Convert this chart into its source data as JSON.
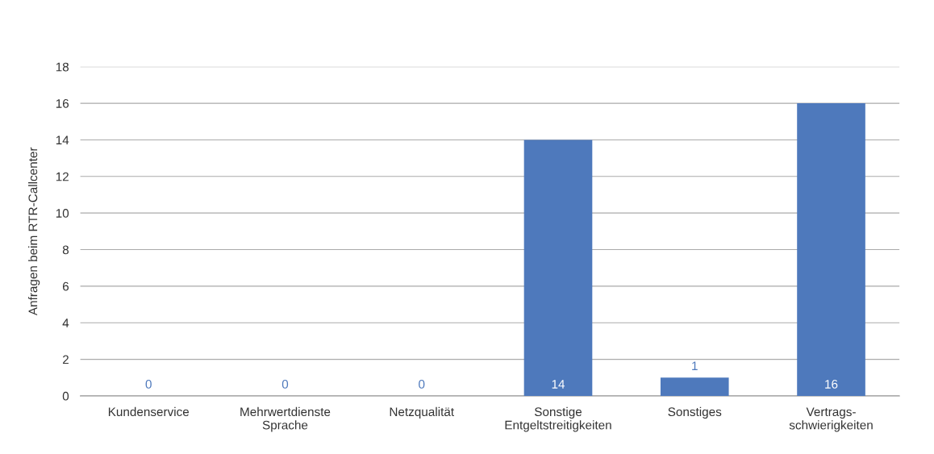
{
  "chart_data": {
    "type": "bar",
    "ylabel": "Anfragen beim RTR-Callcenter",
    "categories": [
      "Kundenservice",
      "Mehrwertdienste\nSprache",
      "Netzqualität",
      "Sonstige\nEntgeltstreitigkeiten",
      "Sonstiges",
      "Vertrags-\nschwierigkeiten"
    ],
    "values": [
      0,
      0,
      0,
      14,
      1,
      16
    ],
    "color": "#4e79bc",
    "ylim": [
      0,
      18
    ],
    "yticks": [
      0,
      2,
      4,
      6,
      8,
      10,
      12,
      14,
      16,
      18
    ],
    "grid": "y",
    "data_labels": true
  }
}
